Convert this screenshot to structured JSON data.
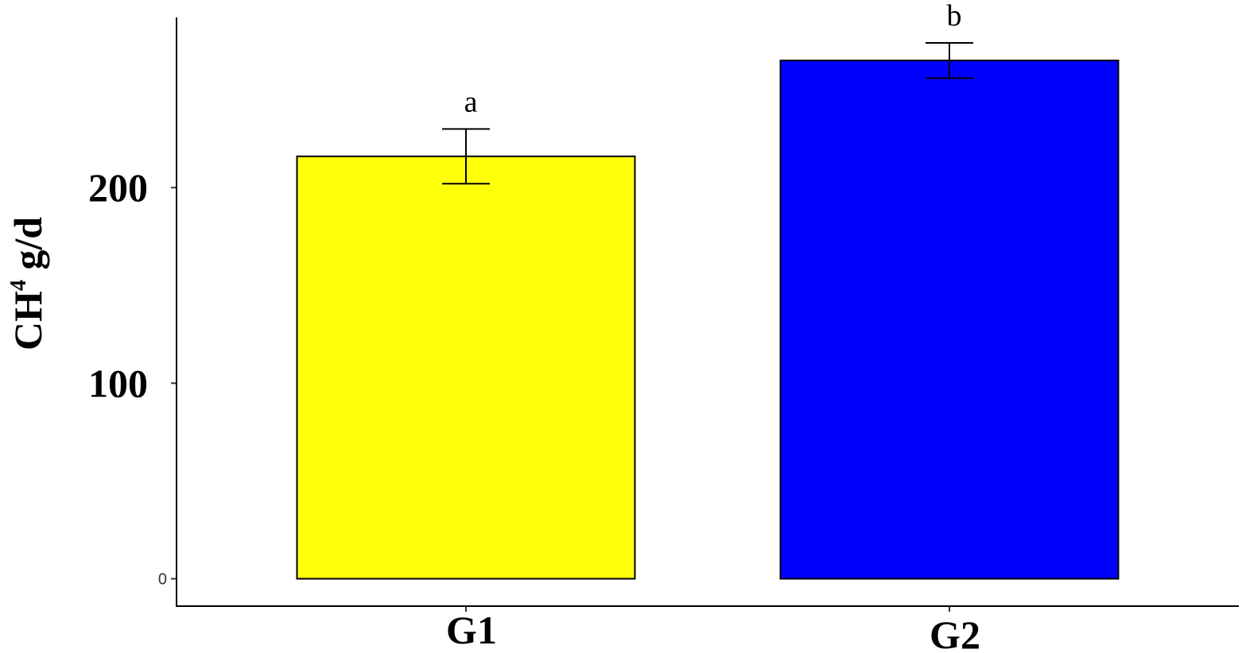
{
  "chart_data": {
    "type": "bar",
    "categories": [
      "G1",
      "G2"
    ],
    "values": [
      216,
      265
    ],
    "errors": [
      14,
      9
    ],
    "colors": [
      "#ffff0a",
      "#0000ff"
    ],
    "significance_letters": [
      "a",
      "b"
    ],
    "ylabel_main": "CH",
    "ylabel_sup": "4",
    "ylabel_rest": " g/d",
    "ylim": [
      -14,
      287
    ],
    "yticks": [
      {
        "value": 0,
        "label": "0",
        "style": "small"
      },
      {
        "value": 100,
        "label": "100",
        "style": "big"
      },
      {
        "value": 200,
        "label": "200",
        "style": "big"
      }
    ],
    "grid": false,
    "legend": "none"
  }
}
